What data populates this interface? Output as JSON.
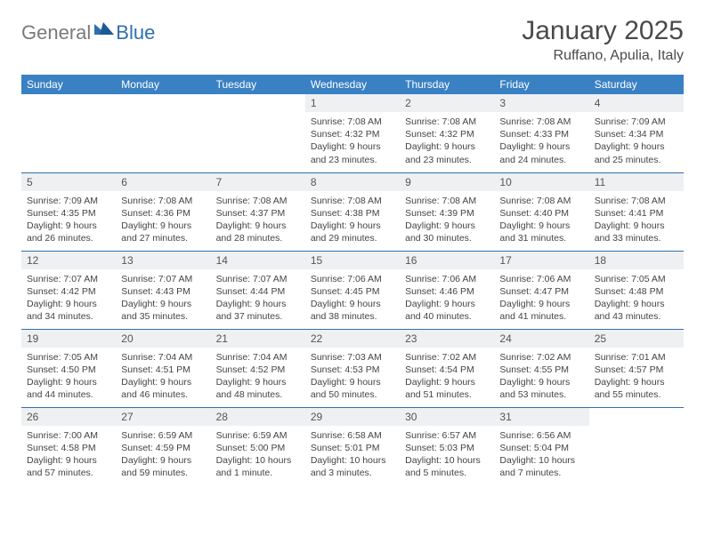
{
  "logo": {
    "general": "General",
    "blue": "Blue"
  },
  "title": "January 2025",
  "location": "Ruffano, Apulia, Italy",
  "colors": {
    "header_bg": "#3a81c4",
    "header_text": "#ffffff",
    "daynum_bg": "#eef0f2",
    "rule": "#2f6fae",
    "logo_gray": "#7a7a7a",
    "logo_blue": "#2f6fae"
  },
  "typography": {
    "title_fontsize": 30,
    "location_fontsize": 16,
    "header_fontsize": 12,
    "body_fontsize": 10.5
  },
  "weekdays": [
    "Sunday",
    "Monday",
    "Tuesday",
    "Wednesday",
    "Thursday",
    "Friday",
    "Saturday"
  ],
  "weeks": [
    [
      null,
      null,
      null,
      {
        "n": "1",
        "sunrise": "7:08 AM",
        "sunset": "4:32 PM",
        "dl1": "Daylight: 9 hours",
        "dl2": "and 23 minutes."
      },
      {
        "n": "2",
        "sunrise": "7:08 AM",
        "sunset": "4:32 PM",
        "dl1": "Daylight: 9 hours",
        "dl2": "and 23 minutes."
      },
      {
        "n": "3",
        "sunrise": "7:08 AM",
        "sunset": "4:33 PM",
        "dl1": "Daylight: 9 hours",
        "dl2": "and 24 minutes."
      },
      {
        "n": "4",
        "sunrise": "7:09 AM",
        "sunset": "4:34 PM",
        "dl1": "Daylight: 9 hours",
        "dl2": "and 25 minutes."
      }
    ],
    [
      {
        "n": "5",
        "sunrise": "7:09 AM",
        "sunset": "4:35 PM",
        "dl1": "Daylight: 9 hours",
        "dl2": "and 26 minutes."
      },
      {
        "n": "6",
        "sunrise": "7:08 AM",
        "sunset": "4:36 PM",
        "dl1": "Daylight: 9 hours",
        "dl2": "and 27 minutes."
      },
      {
        "n": "7",
        "sunrise": "7:08 AM",
        "sunset": "4:37 PM",
        "dl1": "Daylight: 9 hours",
        "dl2": "and 28 minutes."
      },
      {
        "n": "8",
        "sunrise": "7:08 AM",
        "sunset": "4:38 PM",
        "dl1": "Daylight: 9 hours",
        "dl2": "and 29 minutes."
      },
      {
        "n": "9",
        "sunrise": "7:08 AM",
        "sunset": "4:39 PM",
        "dl1": "Daylight: 9 hours",
        "dl2": "and 30 minutes."
      },
      {
        "n": "10",
        "sunrise": "7:08 AM",
        "sunset": "4:40 PM",
        "dl1": "Daylight: 9 hours",
        "dl2": "and 31 minutes."
      },
      {
        "n": "11",
        "sunrise": "7:08 AM",
        "sunset": "4:41 PM",
        "dl1": "Daylight: 9 hours",
        "dl2": "and 33 minutes."
      }
    ],
    [
      {
        "n": "12",
        "sunrise": "7:07 AM",
        "sunset": "4:42 PM",
        "dl1": "Daylight: 9 hours",
        "dl2": "and 34 minutes."
      },
      {
        "n": "13",
        "sunrise": "7:07 AM",
        "sunset": "4:43 PM",
        "dl1": "Daylight: 9 hours",
        "dl2": "and 35 minutes."
      },
      {
        "n": "14",
        "sunrise": "7:07 AM",
        "sunset": "4:44 PM",
        "dl1": "Daylight: 9 hours",
        "dl2": "and 37 minutes."
      },
      {
        "n": "15",
        "sunrise": "7:06 AM",
        "sunset": "4:45 PM",
        "dl1": "Daylight: 9 hours",
        "dl2": "and 38 minutes."
      },
      {
        "n": "16",
        "sunrise": "7:06 AM",
        "sunset": "4:46 PM",
        "dl1": "Daylight: 9 hours",
        "dl2": "and 40 minutes."
      },
      {
        "n": "17",
        "sunrise": "7:06 AM",
        "sunset": "4:47 PM",
        "dl1": "Daylight: 9 hours",
        "dl2": "and 41 minutes."
      },
      {
        "n": "18",
        "sunrise": "7:05 AM",
        "sunset": "4:48 PM",
        "dl1": "Daylight: 9 hours",
        "dl2": "and 43 minutes."
      }
    ],
    [
      {
        "n": "19",
        "sunrise": "7:05 AM",
        "sunset": "4:50 PM",
        "dl1": "Daylight: 9 hours",
        "dl2": "and 44 minutes."
      },
      {
        "n": "20",
        "sunrise": "7:04 AM",
        "sunset": "4:51 PM",
        "dl1": "Daylight: 9 hours",
        "dl2": "and 46 minutes."
      },
      {
        "n": "21",
        "sunrise": "7:04 AM",
        "sunset": "4:52 PM",
        "dl1": "Daylight: 9 hours",
        "dl2": "and 48 minutes."
      },
      {
        "n": "22",
        "sunrise": "7:03 AM",
        "sunset": "4:53 PM",
        "dl1": "Daylight: 9 hours",
        "dl2": "and 50 minutes."
      },
      {
        "n": "23",
        "sunrise": "7:02 AM",
        "sunset": "4:54 PM",
        "dl1": "Daylight: 9 hours",
        "dl2": "and 51 minutes."
      },
      {
        "n": "24",
        "sunrise": "7:02 AM",
        "sunset": "4:55 PM",
        "dl1": "Daylight: 9 hours",
        "dl2": "and 53 minutes."
      },
      {
        "n": "25",
        "sunrise": "7:01 AM",
        "sunset": "4:57 PM",
        "dl1": "Daylight: 9 hours",
        "dl2": "and 55 minutes."
      }
    ],
    [
      {
        "n": "26",
        "sunrise": "7:00 AM",
        "sunset": "4:58 PM",
        "dl1": "Daylight: 9 hours",
        "dl2": "and 57 minutes."
      },
      {
        "n": "27",
        "sunrise": "6:59 AM",
        "sunset": "4:59 PM",
        "dl1": "Daylight: 9 hours",
        "dl2": "and 59 minutes."
      },
      {
        "n": "28",
        "sunrise": "6:59 AM",
        "sunset": "5:00 PM",
        "dl1": "Daylight: 10 hours",
        "dl2": "and 1 minute."
      },
      {
        "n": "29",
        "sunrise": "6:58 AM",
        "sunset": "5:01 PM",
        "dl1": "Daylight: 10 hours",
        "dl2": "and 3 minutes."
      },
      {
        "n": "30",
        "sunrise": "6:57 AM",
        "sunset": "5:03 PM",
        "dl1": "Daylight: 10 hours",
        "dl2": "and 5 minutes."
      },
      {
        "n": "31",
        "sunrise": "6:56 AM",
        "sunset": "5:04 PM",
        "dl1": "Daylight: 10 hours",
        "dl2": "and 7 minutes."
      },
      null
    ]
  ],
  "labels": {
    "sunrise": "Sunrise: ",
    "sunset": "Sunset: "
  }
}
